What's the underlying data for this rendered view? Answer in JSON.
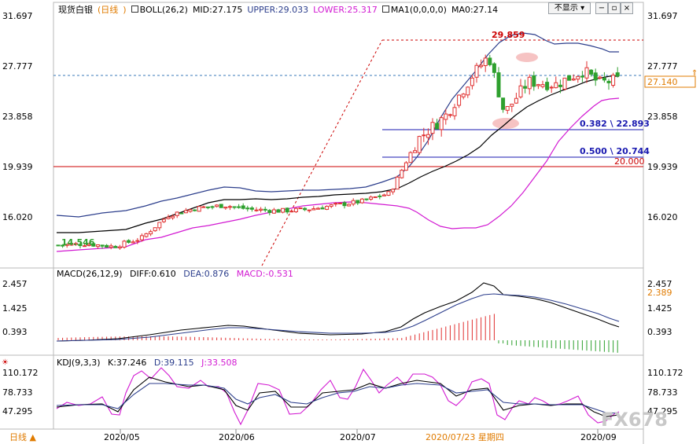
{
  "symbol": "现货白银",
  "period": "日线",
  "boll": {
    "label": "BOLL(26,2)",
    "mid": "MID:27.175",
    "upper": "UPPER:29.033",
    "lower": "LOWER:25.317"
  },
  "ma": {
    "label": "MA1(0,0,0,0)",
    "value": "MA0:27.14"
  },
  "hide_button": "不显示",
  "current_price": "27.140",
  "price_ticks": [
    "31.697",
    "27.777",
    "23.858",
    "19.939",
    "16.020"
  ],
  "annotations": {
    "high": "29.859",
    "low": "14.546",
    "fib_382": "0.382 \\ 22.893",
    "fib_500": "0.500 \\ 20.744",
    "level_20": "20.000"
  },
  "macd": {
    "label": "MACD(26,12,9)",
    "diff": "DIFF:0.610",
    "dea": "DEA:0.876",
    "macd": "MACD:-0.531",
    "ticks": [
      "2.457",
      "1.425",
      "0.393"
    ],
    "current": "2.389"
  },
  "kdj": {
    "label": "KDJ(9,3,3)",
    "k": "K:37.246",
    "d": "D:39.115",
    "j": "J:33.508",
    "ticks": [
      "110.172",
      "78.733",
      "47.295"
    ]
  },
  "x_labels": [
    "2020/05",
    "2020/06",
    "2020/07",
    "2020/08",
    "2020/09"
  ],
  "cursor_date": "2020/07/23 星期四",
  "period_selector": "日线 ▲",
  "watermark": "FX678",
  "colors": {
    "up": "#e03030",
    "down": "#2ea02e",
    "mid": "#000000",
    "upper": "#2c3e8c",
    "lower": "#d21ad2",
    "horizontal_red": "#cc0000",
    "fib_blue": "#1a1ab0",
    "price_tag": "#e07b00"
  },
  "chart_data": {
    "type": "candlestick",
    "ylim": [
      13.5,
      31.8
    ],
    "fib_levels": [
      22.893,
      20.744
    ],
    "horizontal_level": 20.0,
    "close_path": [
      [
        "2020-04-20",
        15.1
      ],
      [
        "2020-04-27",
        15.2
      ],
      [
        "2020-05-04",
        15.0
      ],
      [
        "2020-05-11",
        15.6
      ],
      [
        "2020-05-18",
        17.3
      ],
      [
        "2020-05-25",
        17.8
      ],
      [
        "2020-06-01",
        18.0
      ],
      [
        "2020-06-08",
        17.7
      ],
      [
        "2020-06-15",
        17.6
      ],
      [
        "2020-06-22",
        17.7
      ],
      [
        "2020-06-29",
        18.0
      ],
      [
        "2020-07-06",
        18.3
      ],
      [
        "2020-07-13",
        18.9
      ],
      [
        "2020-07-20",
        22.8
      ],
      [
        "2020-07-27",
        24.5
      ],
      [
        "2020-08-03",
        27.5
      ],
      [
        "2020-08-07",
        28.9
      ],
      [
        "2020-08-11",
        24.7
      ],
      [
        "2020-08-17",
        27.0
      ],
      [
        "2020-08-24",
        26.8
      ],
      [
        "2020-08-31",
        27.8
      ],
      [
        "2020-09-04",
        26.9
      ],
      [
        "2020-09-09",
        27.14
      ]
    ]
  }
}
